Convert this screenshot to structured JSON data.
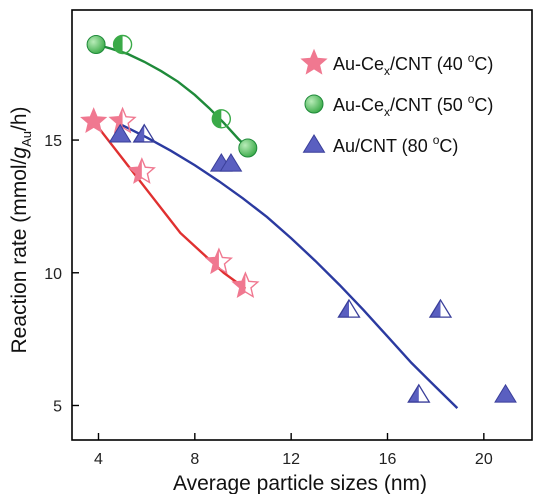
{
  "chart_data": {
    "type": "scatter",
    "xlabel": "Average particle sizes (nm)",
    "ylabel": {
      "main": "Reaction rate (mmol/",
      "g": "g",
      "sub": "Au",
      "tail": "/h)"
    },
    "xlim": [
      2.9,
      22.0
    ],
    "ylim": [
      3.7,
      19.9
    ],
    "xticks": [
      4,
      8,
      12,
      16,
      20
    ],
    "yticks": [
      5,
      10,
      15
    ],
    "xtick_labels": [
      "4",
      "8",
      "12",
      "16",
      "20"
    ],
    "ytick_labels": [
      "5",
      "10",
      "15"
    ],
    "grid": false,
    "legend_position": "top-right",
    "series": [
      {
        "name": {
          "pre": "Au-Ce",
          "sub": "x",
          "post": "/CNT (40 ",
          "sup": "o",
          "unit": "C)"
        },
        "marker": "star",
        "color": "#f07890",
        "points": [
          {
            "x": 3.8,
            "y": 15.7,
            "fill": "full"
          },
          {
            "x": 5.0,
            "y": 15.7,
            "fill": "half"
          },
          {
            "x": 5.8,
            "y": 13.8,
            "fill": "half"
          },
          {
            "x": 9.0,
            "y": 10.4,
            "fill": "half"
          },
          {
            "x": 10.1,
            "y": 9.5,
            "fill": "half"
          }
        ],
        "fit": {
          "color": "#e03030",
          "x": [
            3.8,
            4.4,
            5.0,
            5.6,
            6.2,
            6.8,
            7.4,
            8.0,
            8.6,
            9.2,
            9.8,
            10.1
          ],
          "y": [
            15.7,
            15.0,
            14.3,
            13.6,
            12.9,
            12.2,
            11.5,
            11.0,
            10.5,
            10.0,
            9.6,
            9.4
          ]
        }
      },
      {
        "name": {
          "pre": "Au-Ce",
          "sub": "x",
          "post": "/CNT (50 ",
          "sup": "o",
          "unit": "C)"
        },
        "marker": "circle",
        "color": "#3aaa48",
        "points": [
          {
            "x": 3.9,
            "y": 18.6,
            "fill": "full"
          },
          {
            "x": 5.0,
            "y": 18.6,
            "fill": "half"
          },
          {
            "x": 9.1,
            "y": 15.8,
            "fill": "half"
          },
          {
            "x": 10.2,
            "y": 14.7,
            "fill": "full"
          }
        ],
        "fit": {
          "color": "#1f8a3a",
          "x": [
            3.9,
            4.5,
            5.2,
            5.9,
            6.6,
            7.3,
            8.0,
            8.6,
            9.2,
            9.8,
            10.2
          ],
          "y": [
            18.6,
            18.45,
            18.25,
            17.95,
            17.6,
            17.2,
            16.7,
            16.2,
            15.65,
            15.05,
            14.7
          ]
        }
      },
      {
        "name": {
          "pre": "Au/CNT (80 ",
          "sub": "",
          "post": "",
          "sup": "o",
          "unit": "C)"
        },
        "marker": "triangle",
        "color": "#5a5fc0",
        "points": [
          {
            "x": 4.9,
            "y": 15.2,
            "fill": "full"
          },
          {
            "x": 5.9,
            "y": 15.2,
            "fill": "half"
          },
          {
            "x": 9.1,
            "y": 14.1,
            "fill": "full"
          },
          {
            "x": 9.5,
            "y": 14.1,
            "fill": "full"
          },
          {
            "x": 14.4,
            "y": 8.6,
            "fill": "half"
          },
          {
            "x": 17.3,
            "y": 5.4,
            "fill": "half"
          },
          {
            "x": 18.2,
            "y": 8.6,
            "fill": "half"
          },
          {
            "x": 20.9,
            "y": 5.4,
            "fill": "full"
          }
        ],
        "fit": {
          "color": "#2b3aa0",
          "x": [
            4.9,
            6.0,
            7.0,
            8.0,
            9.0,
            10.0,
            11.0,
            12.0,
            13.0,
            14.0,
            15.0,
            16.0,
            17.0,
            18.0,
            18.9
          ],
          "y": [
            15.6,
            15.1,
            14.6,
            14.05,
            13.45,
            12.8,
            12.1,
            11.3,
            10.45,
            9.55,
            8.6,
            7.6,
            6.6,
            5.7,
            4.9
          ]
        }
      }
    ]
  }
}
